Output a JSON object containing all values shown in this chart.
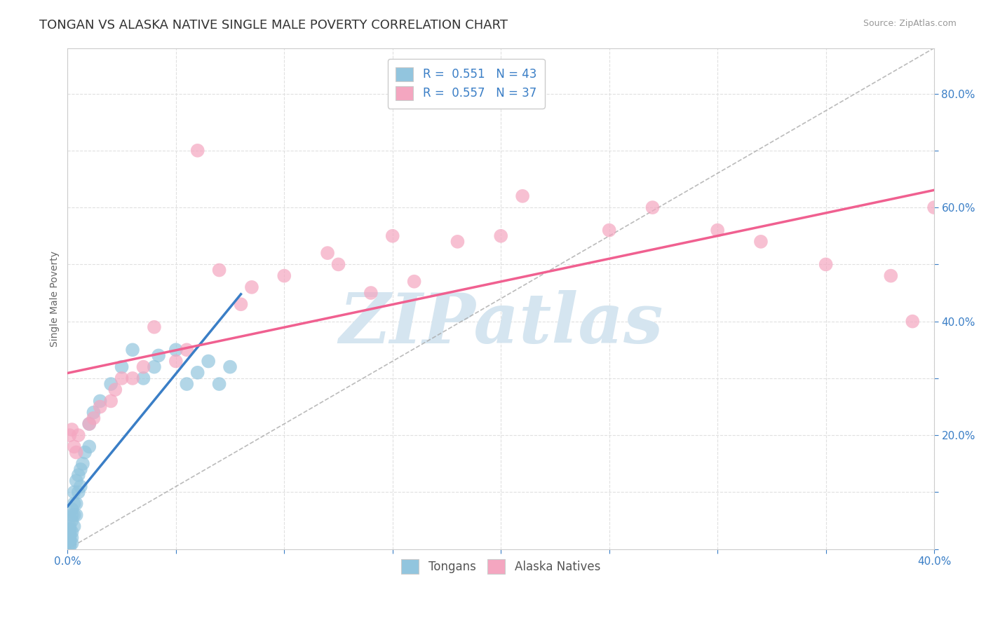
{
  "title": "TONGAN VS ALASKA NATIVE SINGLE MALE POVERTY CORRELATION CHART",
  "source_text": "Source: ZipAtlas.com",
  "ylabel": "Single Male Poverty",
  "xlim": [
    0.0,
    0.4
  ],
  "ylim": [
    0.0,
    0.88
  ],
  "tongan_color": "#92C5DE",
  "alaska_color": "#F4A6C0",
  "tongan_line_color": "#3A7EC6",
  "alaska_line_color": "#F06090",
  "diagonal_color": "#AAAAAA",
  "watermark_text": "ZIPatlas",
  "watermark_color": "#C8D8E8",
  "background_color": "#FFFFFF",
  "grid_color": "#E0E0E0",
  "title_fontsize": 13,
  "axis_label_fontsize": 10,
  "tick_fontsize": 11,
  "legend_fontsize": 12,
  "legend_r1": "R =  0.551   N = 43",
  "legend_r2": "R =  0.557   N = 37",
  "tongan_x": [
    0.001,
    0.001,
    0.001,
    0.001,
    0.001,
    0.001,
    0.001,
    0.001,
    0.002,
    0.002,
    0.002,
    0.002,
    0.002,
    0.002,
    0.003,
    0.003,
    0.003,
    0.003,
    0.004,
    0.004,
    0.004,
    0.005,
    0.005,
    0.006,
    0.006,
    0.007,
    0.008,
    0.01,
    0.01,
    0.012,
    0.015,
    0.02,
    0.025,
    0.03,
    0.035,
    0.04,
    0.042,
    0.05,
    0.055,
    0.06,
    0.065,
    0.07,
    0.075
  ],
  "tongan_y": [
    0.005,
    0.01,
    0.015,
    0.02,
    0.025,
    0.03,
    0.035,
    0.04,
    0.01,
    0.02,
    0.03,
    0.05,
    0.06,
    0.07,
    0.04,
    0.06,
    0.08,
    0.1,
    0.06,
    0.08,
    0.12,
    0.1,
    0.13,
    0.11,
    0.14,
    0.15,
    0.17,
    0.18,
    0.22,
    0.24,
    0.26,
    0.29,
    0.32,
    0.35,
    0.3,
    0.32,
    0.34,
    0.35,
    0.29,
    0.31,
    0.33,
    0.29,
    0.32
  ],
  "alaska_x": [
    0.001,
    0.002,
    0.003,
    0.004,
    0.005,
    0.01,
    0.012,
    0.015,
    0.02,
    0.022,
    0.025,
    0.03,
    0.035,
    0.05,
    0.055,
    0.07,
    0.08,
    0.085,
    0.1,
    0.12,
    0.125,
    0.15,
    0.18,
    0.2,
    0.21,
    0.25,
    0.27,
    0.3,
    0.32,
    0.35,
    0.38,
    0.39,
    0.4,
    0.16,
    0.14,
    0.06,
    0.04
  ],
  "alaska_y": [
    0.2,
    0.21,
    0.18,
    0.17,
    0.2,
    0.22,
    0.23,
    0.25,
    0.26,
    0.28,
    0.3,
    0.3,
    0.32,
    0.33,
    0.35,
    0.49,
    0.43,
    0.46,
    0.48,
    0.52,
    0.5,
    0.55,
    0.54,
    0.55,
    0.62,
    0.56,
    0.6,
    0.56,
    0.54,
    0.5,
    0.48,
    0.4,
    0.6,
    0.47,
    0.45,
    0.7,
    0.39
  ]
}
